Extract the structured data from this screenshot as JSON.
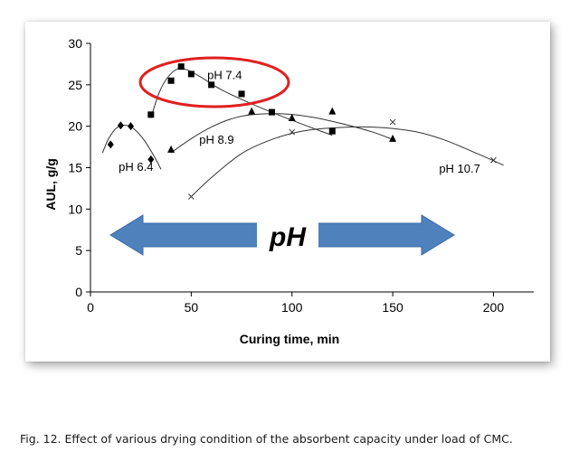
{
  "caption": "Fig. 12. Effect of various drying condition of the absorbent capacity under load of CMC.",
  "chart_data": {
    "type": "scatter",
    "xlabel": "Curing time, min",
    "ylabel": "AUL, g/g",
    "xlim": [
      0,
      220
    ],
    "ylim": [
      0,
      30
    ],
    "xticks": [
      "0",
      "50",
      "100",
      "150",
      "200"
    ],
    "yticks": [
      "0",
      "5",
      "10",
      "15",
      "20",
      "25",
      "30"
    ],
    "grid": false,
    "legend": "none",
    "arrow_label": "pH",
    "arrow_color": "#4f81bd",
    "highlight_color": "#e02020",
    "series": [
      {
        "name": "pH 6.4",
        "marker": "diamond",
        "points": [
          [
            10,
            17.8
          ],
          [
            15,
            20.1
          ],
          [
            20,
            20.0
          ],
          [
            30,
            16.0
          ]
        ],
        "fit": [
          [
            6,
            16.8
          ],
          [
            9,
            18.5
          ],
          [
            13,
            19.8
          ],
          [
            18,
            20.1
          ],
          [
            22,
            19.6
          ],
          [
            27,
            18.2
          ],
          [
            32,
            16.2
          ],
          [
            35,
            14.8
          ]
        ]
      },
      {
        "name": "pH 7.4",
        "marker": "square",
        "points": [
          [
            30,
            21.4
          ],
          [
            40,
            25.5
          ],
          [
            45,
            27.2
          ],
          [
            50,
            26.3
          ],
          [
            60,
            25.0
          ],
          [
            75,
            23.9
          ],
          [
            90,
            21.7
          ],
          [
            120,
            19.4
          ]
        ],
        "fit": [
          [
            30,
            21.0
          ],
          [
            34,
            24.0
          ],
          [
            38,
            25.8
          ],
          [
            43,
            26.9
          ],
          [
            48,
            26.8
          ],
          [
            55,
            25.9
          ],
          [
            65,
            24.4
          ],
          [
            80,
            22.7
          ],
          [
            95,
            21.2
          ],
          [
            110,
            19.8
          ],
          [
            120,
            18.9
          ]
        ]
      },
      {
        "name": "pH 8.9",
        "marker": "triangle",
        "points": [
          [
            40,
            17.2
          ],
          [
            80,
            21.8
          ],
          [
            100,
            21.0
          ],
          [
            120,
            21.8
          ],
          [
            150,
            18.5
          ]
        ],
        "fit": [
          [
            40,
            16.8
          ],
          [
            50,
            18.5
          ],
          [
            60,
            19.9
          ],
          [
            70,
            20.9
          ],
          [
            80,
            21.4
          ],
          [
            95,
            21.5
          ],
          [
            110,
            21.1
          ],
          [
            125,
            20.3
          ],
          [
            140,
            19.3
          ],
          [
            150,
            18.4
          ]
        ]
      },
      {
        "name": "pH 10.7",
        "marker": "x",
        "points": [
          [
            50,
            11.5
          ],
          [
            100,
            19.3
          ],
          [
            150,
            20.5
          ],
          [
            200,
            15.9
          ]
        ],
        "fit": [
          [
            50,
            11.5
          ],
          [
            60,
            13.8
          ],
          [
            75,
            16.7
          ],
          [
            90,
            18.4
          ],
          [
            105,
            19.4
          ],
          [
            120,
            19.8
          ],
          [
            140,
            19.9
          ],
          [
            160,
            19.4
          ],
          [
            175,
            18.4
          ],
          [
            190,
            16.9
          ],
          [
            205,
            15.3
          ]
        ]
      }
    ]
  }
}
